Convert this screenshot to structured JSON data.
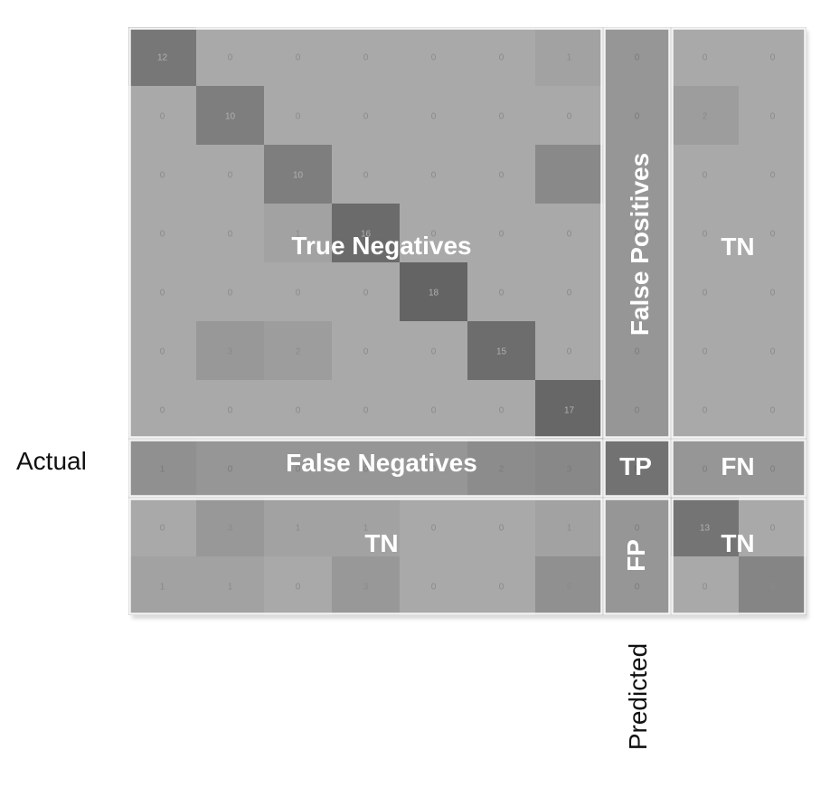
{
  "chart_data": {
    "type": "heatmap",
    "row_axis_label": "Actual",
    "col_axis_label": "Predicted",
    "matrix": [
      [
        12,
        0,
        0,
        0,
        0,
        0,
        1,
        0,
        0,
        0
      ],
      [
        0,
        10,
        0,
        0,
        0,
        0,
        0,
        0,
        2,
        0
      ],
      [
        0,
        0,
        10,
        0,
        0,
        0,
        7,
        0,
        0,
        0
      ],
      [
        0,
        0,
        1,
        16,
        0,
        0,
        0,
        0,
        0,
        0
      ],
      [
        0,
        0,
        0,
        0,
        18,
        0,
        0,
        0,
        0,
        0
      ],
      [
        0,
        3,
        2,
        0,
        0,
        15,
        0,
        0,
        0,
        0
      ],
      [
        0,
        0,
        0,
        0,
        0,
        0,
        17,
        0,
        0,
        0
      ],
      [
        1,
        0,
        0,
        0,
        0,
        2,
        3,
        0,
        0,
        0
      ],
      [
        0,
        3,
        1,
        1,
        0,
        0,
        1,
        0,
        13,
        0
      ],
      [
        1,
        1,
        0,
        3,
        0,
        0,
        5,
        0,
        0,
        8
      ]
    ],
    "regions": {
      "true_negatives_main": "True Negatives",
      "false_positives": "False Positives",
      "tn_right": "TN",
      "false_negatives": "False Negatives",
      "tp": "TP",
      "fn": "FN",
      "tn_bottom_left": "TN",
      "fp": "FP",
      "tn_bottom_right": "TN"
    },
    "highlight_class_index": 7,
    "grid": false,
    "legend": "none"
  }
}
